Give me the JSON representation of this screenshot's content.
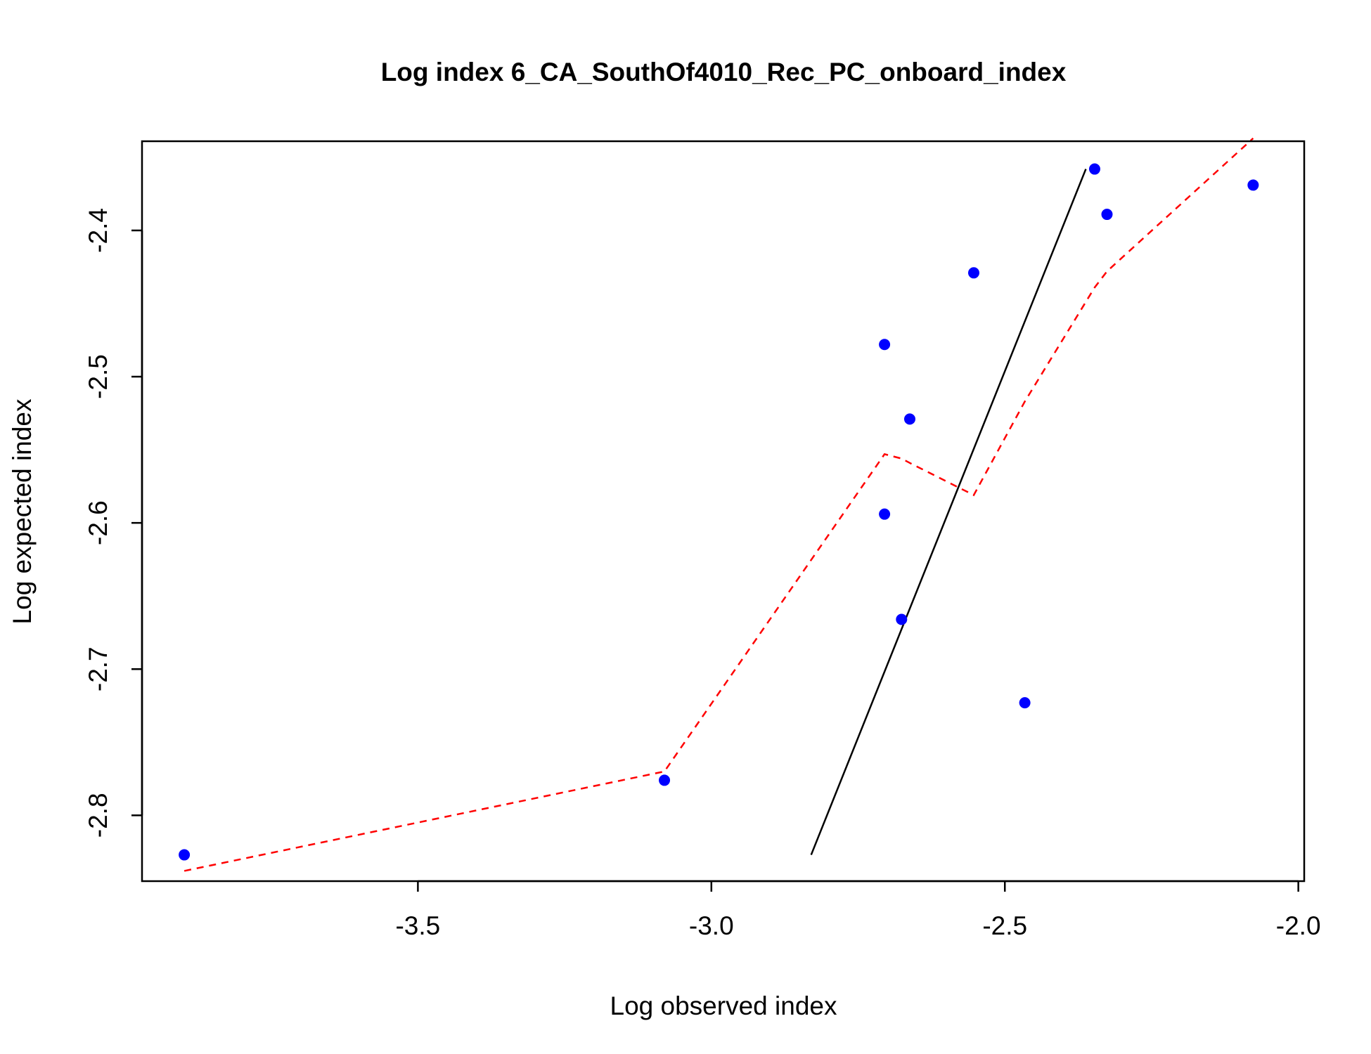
{
  "chart_data": {
    "type": "scatter",
    "title": "Log index 6_CA_SouthOf4010_Rec_PC_onboard_index",
    "xlabel": "Log observed index",
    "ylabel": "Log expected index",
    "xlim": [
      -3.97,
      -1.99
    ],
    "ylim": [
      -2.845,
      -2.339
    ],
    "xticks": [
      -3.5,
      -3.0,
      -2.5,
      -2.0
    ],
    "xtick_labels": [
      "-3.5",
      "-3.0",
      "-2.5",
      "-2.0"
    ],
    "yticks": [
      -2.8,
      -2.7,
      -2.6,
      -2.5,
      -2.4
    ],
    "ytick_labels": [
      "-2.8",
      "-2.7",
      "-2.6",
      "-2.5",
      "-2.4"
    ],
    "grid": false,
    "legend": "none",
    "colors": {
      "points": "#0000ff",
      "smoother": "#ff0000",
      "line": "#000000",
      "axes": "#000000"
    },
    "points": [
      {
        "x": -3.898,
        "y": -2.827
      },
      {
        "x": -3.08,
        "y": -2.776
      },
      {
        "x": -2.705,
        "y": -2.478
      },
      {
        "x": -2.705,
        "y": -2.594
      },
      {
        "x": -2.676,
        "y": -2.666
      },
      {
        "x": -2.662,
        "y": -2.529
      },
      {
        "x": -2.553,
        "y": -2.429
      },
      {
        "x": -2.466,
        "y": -2.723
      },
      {
        "x": -2.347,
        "y": -2.358
      },
      {
        "x": -2.326,
        "y": -2.389
      },
      {
        "x": -2.077,
        "y": -2.369
      }
    ],
    "smoother": [
      {
        "x": -3.898,
        "y": -2.838
      },
      {
        "x": -3.08,
        "y": -2.77
      },
      {
        "x": -2.705,
        "y": -2.553
      },
      {
        "x": -2.676,
        "y": -2.556
      },
      {
        "x": -2.662,
        "y": -2.559
      },
      {
        "x": -2.553,
        "y": -2.581
      },
      {
        "x": -2.466,
        "y": -2.517
      },
      {
        "x": -2.347,
        "y": -2.439
      },
      {
        "x": -2.326,
        "y": -2.428
      },
      {
        "x": -2.077,
        "y": -2.337
      }
    ],
    "reference_line": [
      {
        "x": -2.83,
        "y": -2.827
      },
      {
        "x": -2.362,
        "y": -2.358
      }
    ]
  }
}
